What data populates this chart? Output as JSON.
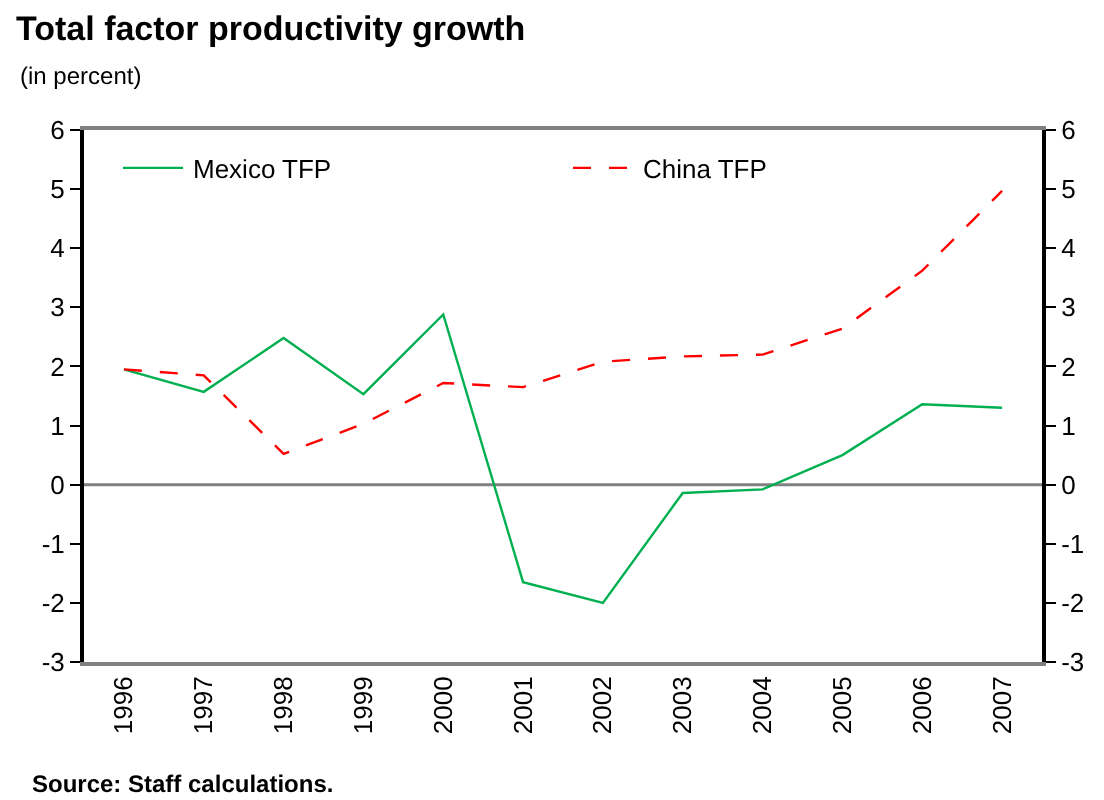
{
  "chart_data": {
    "type": "line",
    "title": "Total factor productivity growth",
    "subtitle": "(in percent)",
    "annotations": [
      "Source: Staff calculations."
    ],
    "categories": [
      "1996",
      "1997",
      "1998",
      "1999",
      "2000",
      "2001",
      "2002",
      "2003",
      "2004",
      "2005",
      "2006",
      "2007"
    ],
    "series": [
      {
        "name": "Mexico TFP",
        "color": "#00b050",
        "line_style": "solid",
        "values": [
          1.95,
          1.57,
          2.48,
          1.53,
          2.88,
          -1.65,
          -2.0,
          -0.14,
          -0.08,
          0.5,
          1.36,
          1.3
        ]
      },
      {
        "name": "China TFP",
        "color": "#ff0000",
        "line_style": "dashed",
        "values": [
          1.95,
          1.85,
          0.52,
          1.03,
          1.72,
          1.65,
          2.08,
          2.17,
          2.2,
          2.64,
          3.62,
          4.97
        ]
      }
    ],
    "ylim": [
      -3,
      6
    ],
    "yticks": [
      -3,
      -2,
      -1,
      0,
      1,
      2,
      3,
      4,
      5,
      6
    ],
    "y2lim": [
      -3,
      6
    ],
    "y2ticks": [
      -3,
      -2,
      -1,
      0,
      1,
      2,
      3,
      4,
      5,
      6
    ],
    "ref_lines": [
      {
        "axis": "y",
        "value": 0,
        "color": "#808080",
        "line_style": "solid"
      }
    ],
    "legend": "top",
    "marker": "none"
  }
}
